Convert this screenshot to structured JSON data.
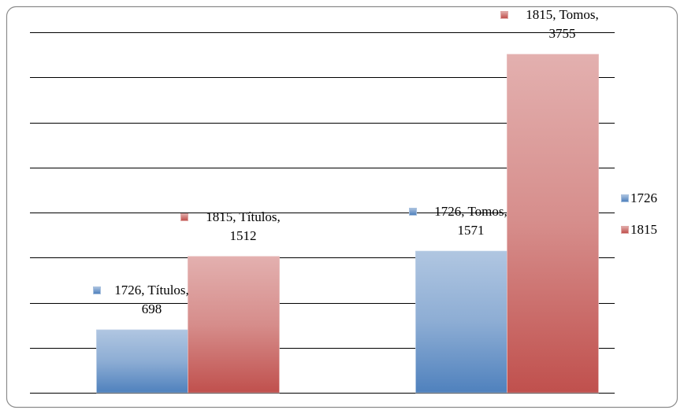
{
  "chart_data": {
    "type": "bar",
    "categories": [
      "Títulos",
      "Tomos"
    ],
    "series": [
      {
        "name": "1726",
        "color": "#4f81bd",
        "values": [
          698,
          1571
        ],
        "value_labels": [
          "1726, Títulos, 698",
          "1726, Tomos, 1571"
        ]
      },
      {
        "name": "1815",
        "color": "#c0504d",
        "values": [
          1512,
          3755
        ],
        "value_labels": [
          "1815, Títulos, 1512",
          "1815, Tomos, 3755"
        ]
      }
    ],
    "ylim": [
      0,
      4000
    ],
    "yticks": [
      0,
      500,
      1000,
      1500,
      2000,
      2500,
      3000,
      3500,
      4000
    ],
    "grid": true,
    "legend": "right"
  }
}
